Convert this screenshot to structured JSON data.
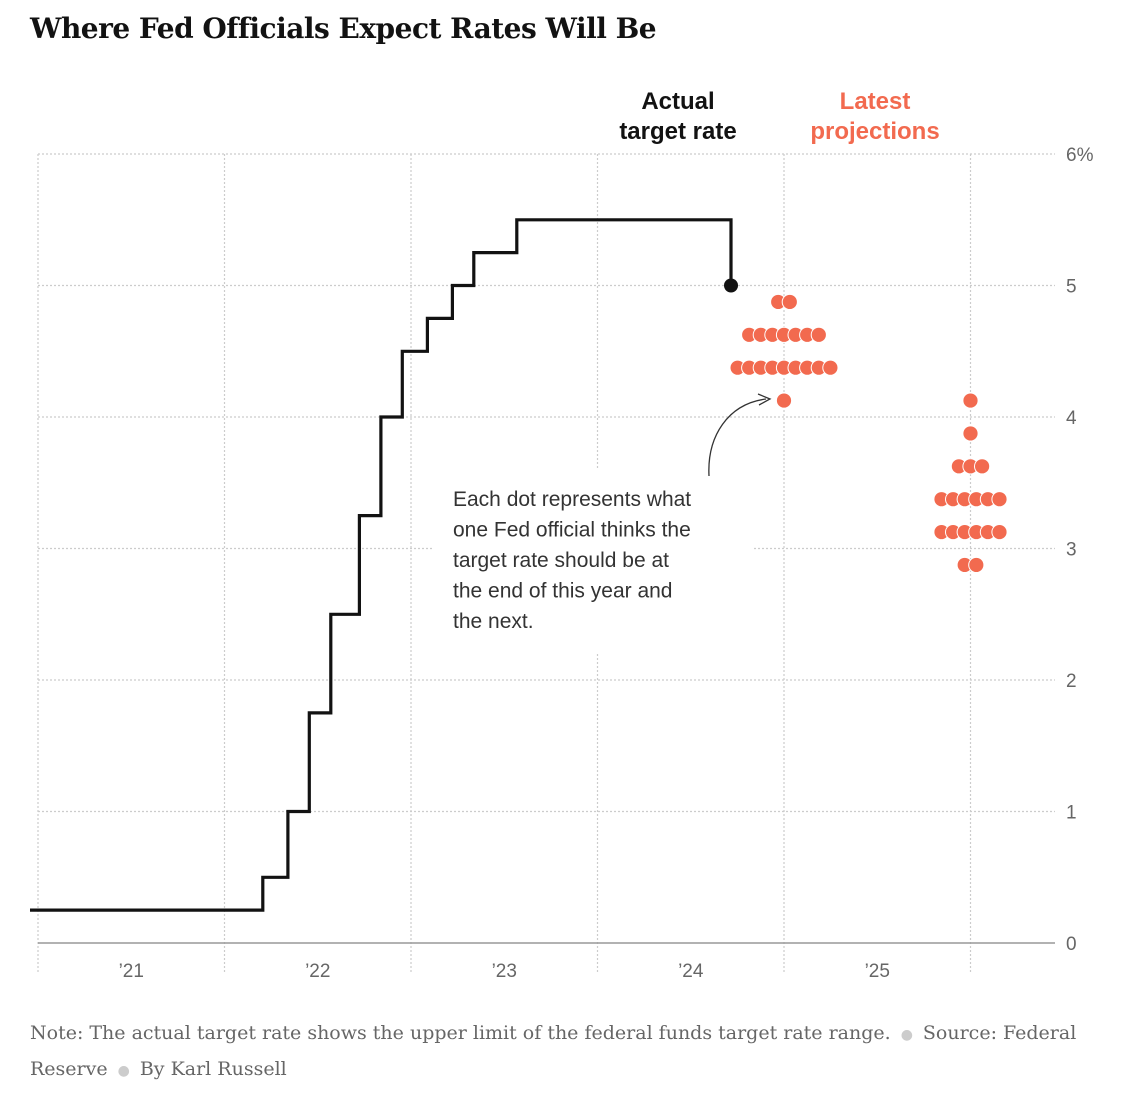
{
  "title": "Where Fed Officials Expect Rates Will Be",
  "chart_data": {
    "type": "line",
    "title": "Where Fed Officials Expect Rates Will Be",
    "ylim": [
      0,
      6
    ],
    "y_ticks": [
      {
        "value": 0,
        "label": "0"
      },
      {
        "value": 1,
        "label": "1"
      },
      {
        "value": 2,
        "label": "2"
      },
      {
        "value": 3,
        "label": "3"
      },
      {
        "value": 4,
        "label": "4"
      },
      {
        "value": 5,
        "label": "5"
      },
      {
        "value": 6,
        "label": "6%"
      }
    ],
    "x_ticks": [
      {
        "year": 2021,
        "label": "’21"
      },
      {
        "year": 2022,
        "label": "’22"
      },
      {
        "year": 2023,
        "label": "’23"
      },
      {
        "year": 2024,
        "label": "’24"
      },
      {
        "year": 2025,
        "label": "’25"
      }
    ],
    "grid": true,
    "colors": {
      "actual": "#121212",
      "projection": "#f26a4f",
      "grid": "#cccccc",
      "axis": "#999999"
    },
    "series": [
      {
        "name": "Actual target rate",
        "color": "#121212",
        "points": [
          {
            "date": "2021-01-01",
            "rate": 0.25
          },
          {
            "date": "2022-03-17",
            "rate": 0.5
          },
          {
            "date": "2022-05-05",
            "rate": 1.0
          },
          {
            "date": "2022-06-16",
            "rate": 1.75
          },
          {
            "date": "2022-07-28",
            "rate": 2.5
          },
          {
            "date": "2022-09-22",
            "rate": 3.25
          },
          {
            "date": "2022-11-03",
            "rate": 4.0
          },
          {
            "date": "2022-12-15",
            "rate": 4.5
          },
          {
            "date": "2023-02-02",
            "rate": 4.75
          },
          {
            "date": "2023-03-23",
            "rate": 5.0
          },
          {
            "date": "2023-05-04",
            "rate": 5.25
          },
          {
            "date": "2023-07-27",
            "rate": 5.5
          },
          {
            "date": "2024-09-18",
            "rate": 5.5
          },
          {
            "date": "2024-09-19",
            "rate": 5.0
          }
        ],
        "latest_point": {
          "date": "2024-09-19",
          "rate": 5.0
        }
      },
      {
        "name": "Latest projections",
        "color": "#f26a4f",
        "projections": [
          {
            "year_end": 2024,
            "dots": [
              {
                "rate": 4.875,
                "count": 2
              },
              {
                "rate": 4.625,
                "count": 7
              },
              {
                "rate": 4.375,
                "count": 9
              },
              {
                "rate": 4.125,
                "count": 1
              }
            ]
          },
          {
            "year_end": 2025,
            "dots": [
              {
                "rate": 4.125,
                "count": 1
              },
              {
                "rate": 3.875,
                "count": 1
              },
              {
                "rate": 3.625,
                "count": 3
              },
              {
                "rate": 3.375,
                "count": 6
              },
              {
                "rate": 3.125,
                "count": 6
              },
              {
                "rate": 2.875,
                "count": 2
              }
            ]
          }
        ]
      }
    ]
  },
  "header_labels": {
    "actual": [
      "Actual",
      "target rate"
    ],
    "projections": [
      "Latest",
      "projections"
    ]
  },
  "annotation": {
    "lines": [
      "Each dot represents what",
      "one Fed official thinks the",
      "target rate should be at",
      "the end of this year and",
      "the next."
    ]
  },
  "footer": {
    "note": "Note: The actual target rate shows the upper limit of the federal funds target rate range.",
    "source": "Source: Federal Reserve",
    "byline": "By Karl Russell"
  }
}
